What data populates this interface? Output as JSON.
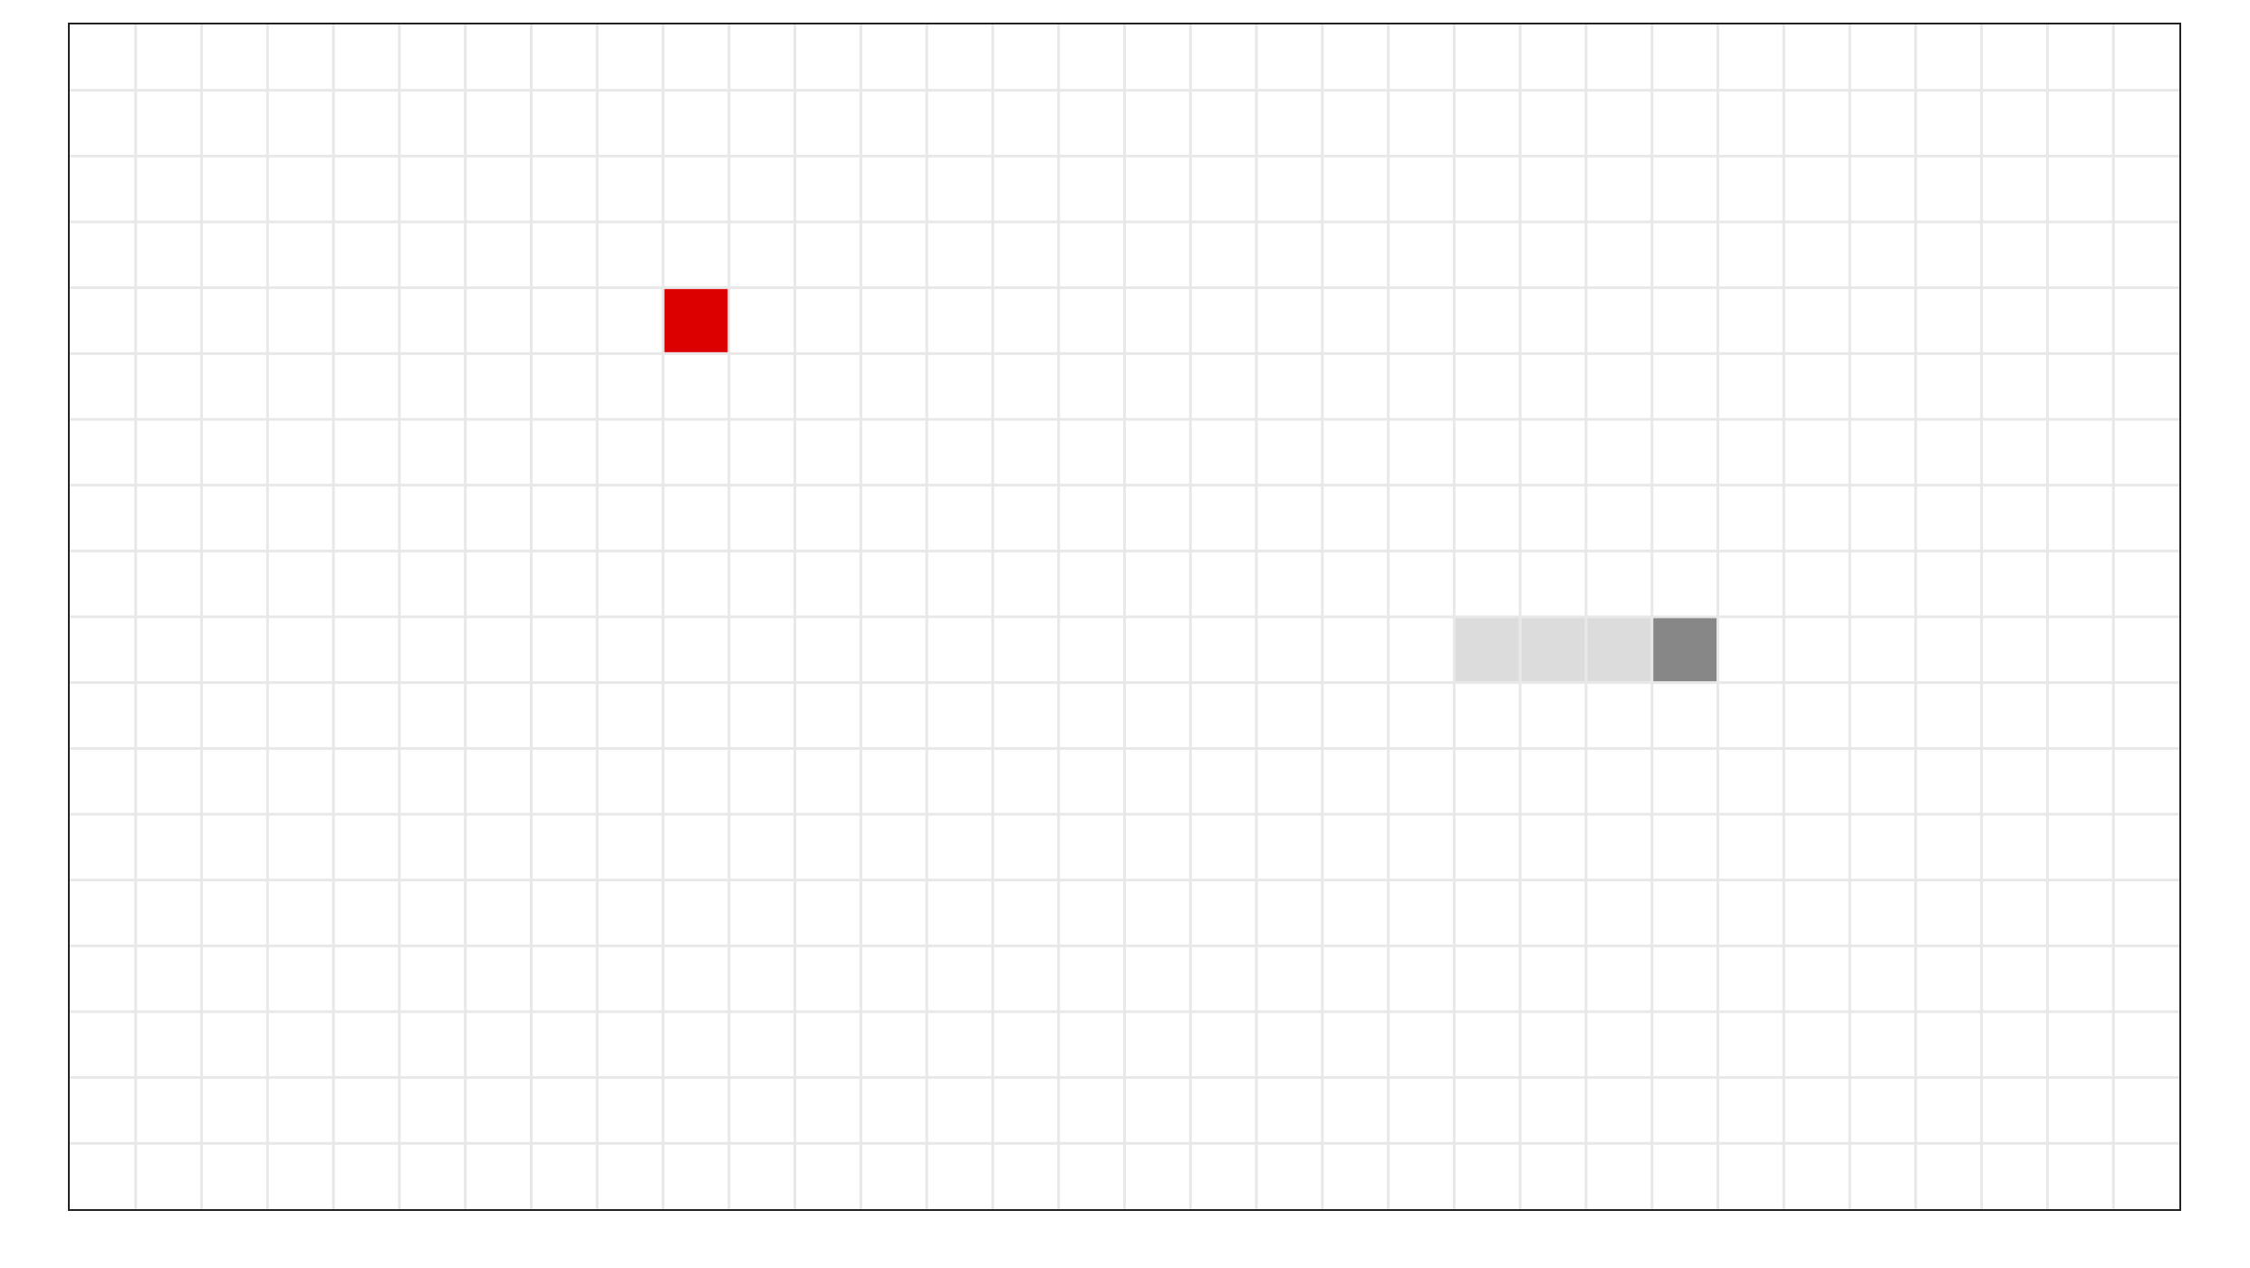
{
  "game": {
    "grid": {
      "cols": 32,
      "rows": 18,
      "background_color": "#ffffff",
      "line_color": "#e8e8e8",
      "border_color": "#222222"
    },
    "food": {
      "col": 9,
      "row": 4,
      "color": "#dd0000"
    },
    "snake": {
      "head": {
        "col": 24,
        "row": 9
      },
      "body": [
        {
          "col": 21,
          "row": 9
        },
        {
          "col": 22,
          "row": 9
        },
        {
          "col": 23,
          "row": 9
        }
      ],
      "head_color": "#878787",
      "body_color": "#dcdcdc"
    }
  }
}
